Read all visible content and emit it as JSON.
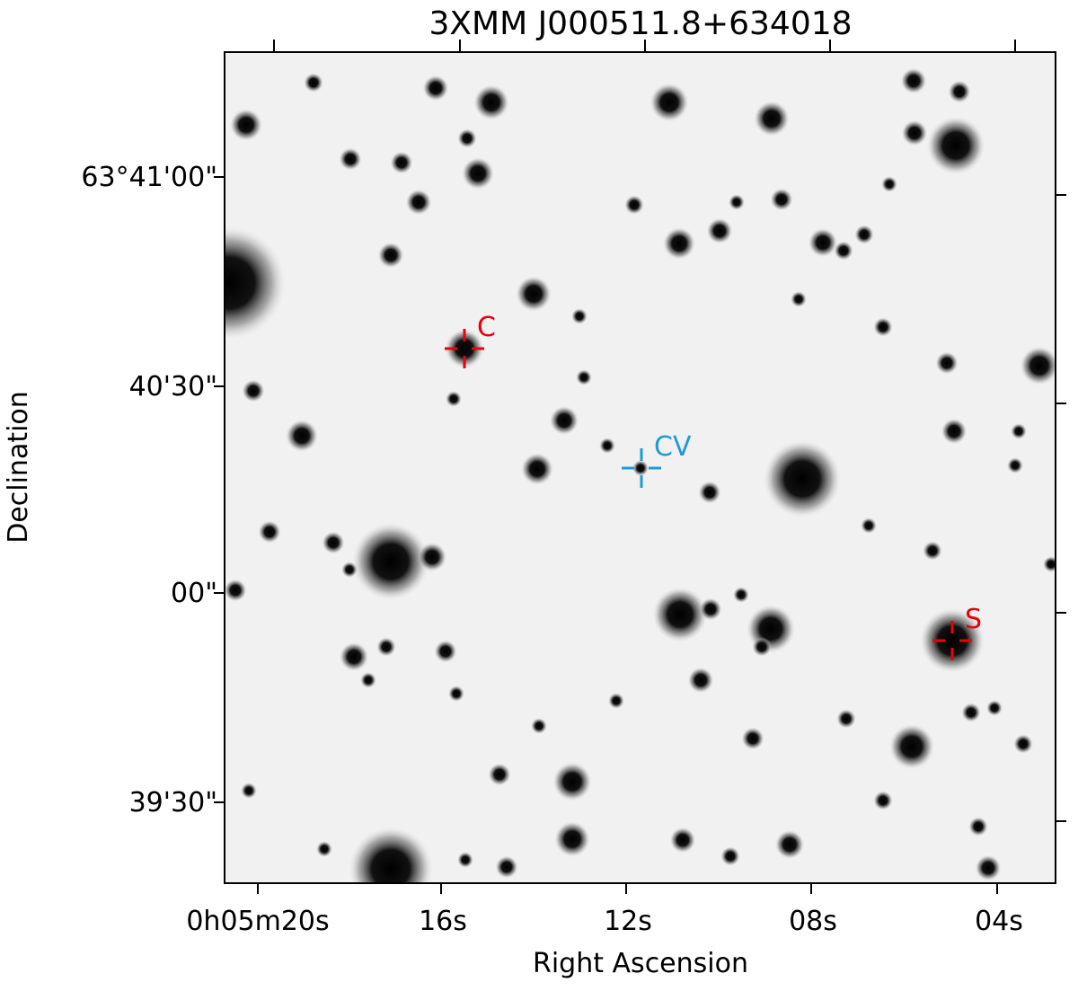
{
  "title": "3XMM J000511.8+634018",
  "x_axis": {
    "label": "Right Ascension",
    "ticks": [
      "0h05m20s",
      "16s",
      "12s",
      "08s",
      "04s"
    ]
  },
  "y_axis": {
    "label": "Declination",
    "ticks": [
      "63°41'00\"",
      "40'30\"",
      "00\"",
      "39'30\""
    ]
  },
  "markers": [
    {
      "label": "C"
    },
    {
      "label": "CV"
    },
    {
      "label": "S"
    }
  ]
}
